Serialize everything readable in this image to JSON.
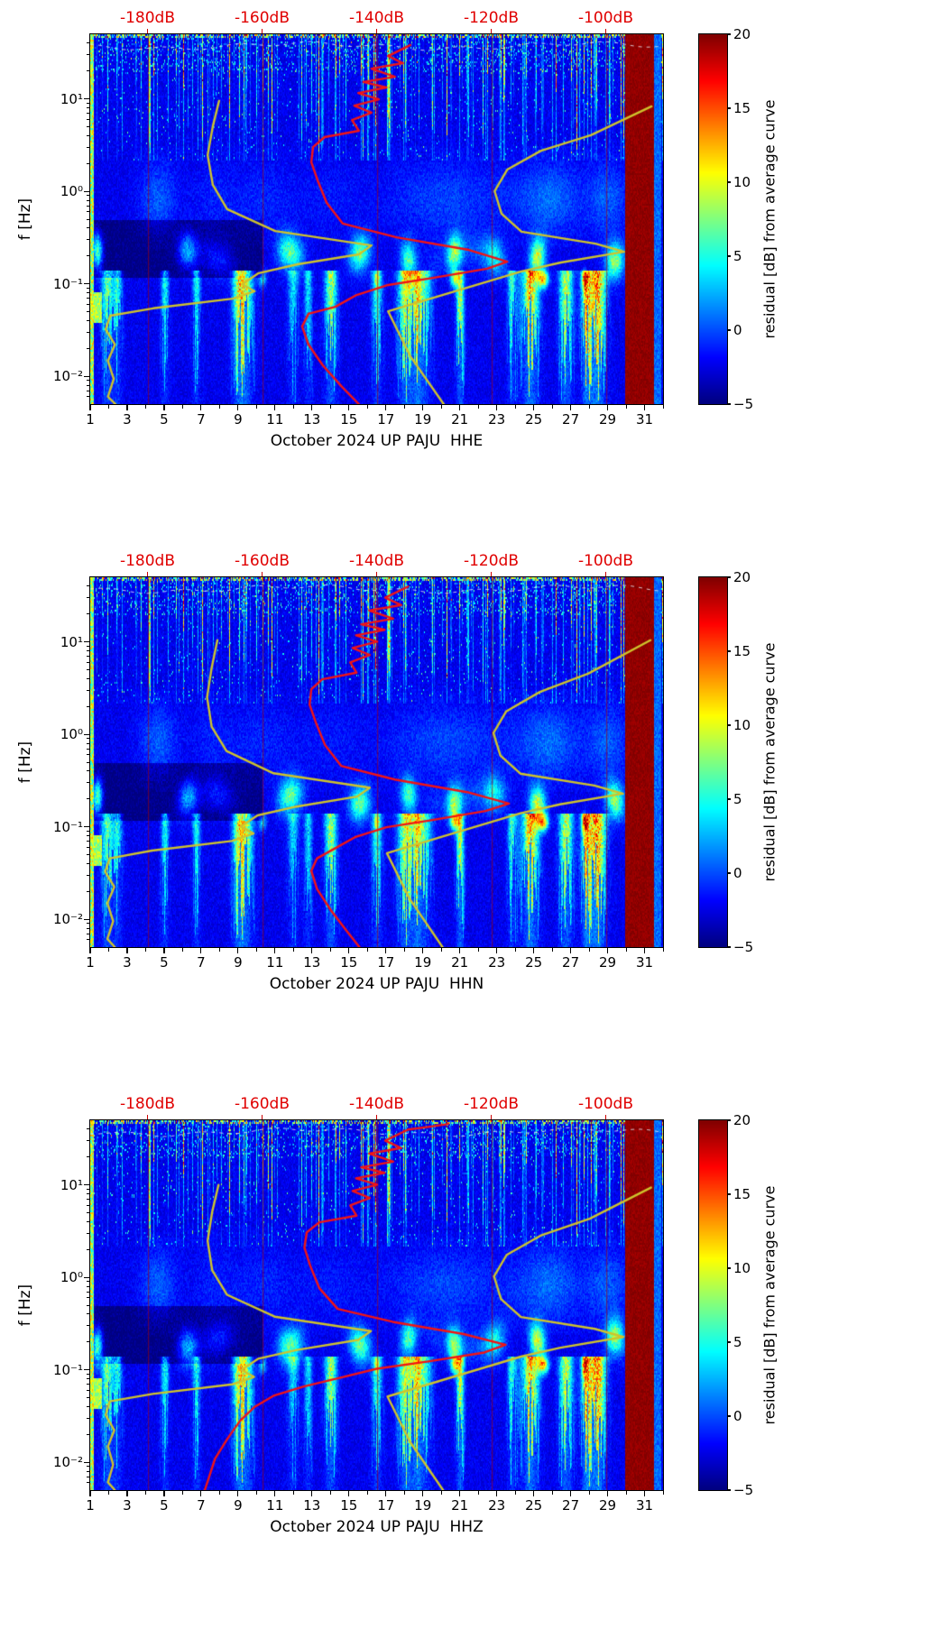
{
  "figure": {
    "background": "#ffffff",
    "accent_red": "#e00000",
    "curve_red": "#f21414",
    "curve_yellow": "#cfc32c",
    "grid_red": "#aa0000",
    "colormap": "jet"
  },
  "chart_data": [
    {
      "type": "heatmap",
      "id": "HHE",
      "seed": 11,
      "xlabel": "October 2024 UP PAJU  HHE",
      "ylabel": "f [Hz]",
      "x_axis": {
        "min": 1,
        "max": 32,
        "major_ticks": [
          1,
          3,
          5,
          7,
          9,
          11,
          13,
          15,
          17,
          19,
          21,
          23,
          25,
          27,
          29,
          31
        ],
        "tick_labels": [
          "1",
          "3",
          "5",
          "7",
          "9",
          "11",
          "13",
          "15",
          "17",
          "19",
          "21",
          "23",
          "25",
          "27",
          "29",
          "31"
        ],
        "minor_ticks": [
          2,
          4,
          6,
          8,
          10,
          12,
          14,
          16,
          18,
          20,
          22,
          24,
          26,
          28,
          30,
          32
        ]
      },
      "y_axis": {
        "scale": "log",
        "min": 0.005,
        "max": 50,
        "major_ticks": [
          10,
          1,
          0.1,
          0.01
        ],
        "tick_labels": [
          "10¹",
          "10⁰",
          "10⁻¹",
          "10⁻²"
        ]
      },
      "top_axis": {
        "labels": [
          "-180dB",
          "-160dB",
          "-140dB",
          "-120dB",
          "-100dB"
        ],
        "positions": [
          0.1,
          0.3,
          0.5,
          0.7,
          0.9
        ]
      },
      "colorbar": {
        "label": "residual [dB] from average curve",
        "min": -5,
        "max": 20,
        "ticks": [
          20,
          15,
          10,
          5,
          0,
          -5
        ],
        "tick_labels": [
          "20",
          "15",
          "10",
          "5",
          "0",
          "−5"
        ]
      },
      "saturated_band": [
        0.935,
        0.985
      ],
      "curves": {
        "red": [
          [
            0.559,
            0.029
          ],
          [
            0.52,
            0.059
          ],
          [
            0.546,
            0.078
          ],
          [
            0.491,
            0.093
          ],
          [
            0.532,
            0.115
          ],
          [
            0.477,
            0.129
          ],
          [
            0.517,
            0.144
          ],
          [
            0.468,
            0.159
          ],
          [
            0.504,
            0.176
          ],
          [
            0.461,
            0.193
          ],
          [
            0.491,
            0.212
          ],
          [
            0.457,
            0.232
          ],
          [
            0.469,
            0.261
          ],
          [
            0.409,
            0.278
          ],
          [
            0.389,
            0.305
          ],
          [
            0.386,
            0.346
          ],
          [
            0.397,
            0.395
          ],
          [
            0.413,
            0.456
          ],
          [
            0.441,
            0.512
          ],
          [
            0.535,
            0.549
          ],
          [
            0.661,
            0.583
          ],
          [
            0.728,
            0.615
          ],
          [
            0.693,
            0.634
          ],
          [
            0.598,
            0.659
          ],
          [
            0.52,
            0.678
          ],
          [
            0.465,
            0.705
          ],
          [
            0.428,
            0.737
          ],
          [
            0.381,
            0.756
          ],
          [
            0.37,
            0.79
          ],
          [
            0.381,
            0.839
          ],
          [
            0.406,
            0.895
          ],
          [
            0.438,
            0.951
          ],
          [
            0.469,
            1.0
          ]
        ],
        "yellow_a": [
          [
            0.225,
            0.18
          ],
          [
            0.214,
            0.249
          ],
          [
            0.205,
            0.327
          ],
          [
            0.214,
            0.407
          ],
          [
            0.239,
            0.473
          ],
          [
            0.323,
            0.532
          ],
          [
            0.491,
            0.571
          ],
          [
            0.469,
            0.595
          ],
          [
            0.362,
            0.622
          ],
          [
            0.294,
            0.646
          ],
          [
            0.265,
            0.676
          ],
          [
            0.287,
            0.695
          ],
          [
            0.249,
            0.715
          ],
          [
            0.11,
            0.741
          ],
          [
            0.035,
            0.761
          ],
          [
            0.027,
            0.798
          ],
          [
            0.043,
            0.839
          ],
          [
            0.031,
            0.883
          ],
          [
            0.041,
            0.932
          ],
          [
            0.031,
            0.98
          ],
          [
            0.044,
            1.0
          ]
        ],
        "yellow_b": [
          [
            0.98,
            0.195
          ],
          [
            0.874,
            0.273
          ],
          [
            0.787,
            0.315
          ],
          [
            0.728,
            0.366
          ],
          [
            0.706,
            0.424
          ],
          [
            0.718,
            0.485
          ],
          [
            0.753,
            0.534
          ],
          [
            0.882,
            0.566
          ],
          [
            0.932,
            0.588
          ],
          [
            0.822,
            0.617
          ],
          [
            0.753,
            0.641
          ],
          [
            0.52,
            0.749
          ],
          [
            0.559,
            0.871
          ],
          [
            0.617,
            1.0
          ]
        ]
      }
    },
    {
      "type": "heatmap",
      "id": "HHN",
      "seed": 22,
      "xlabel": "October 2024 UP PAJU  HHN",
      "ylabel": "f [Hz]",
      "x_axis": {
        "min": 1,
        "max": 32,
        "major_ticks": [
          1,
          3,
          5,
          7,
          9,
          11,
          13,
          15,
          17,
          19,
          21,
          23,
          25,
          27,
          29,
          31
        ],
        "tick_labels": [
          "1",
          "3",
          "5",
          "7",
          "9",
          "11",
          "13",
          "15",
          "17",
          "19",
          "21",
          "23",
          "25",
          "27",
          "29",
          "31"
        ],
        "minor_ticks": [
          2,
          4,
          6,
          8,
          10,
          12,
          14,
          16,
          18,
          20,
          22,
          24,
          26,
          28,
          30,
          32
        ]
      },
      "y_axis": {
        "scale": "log",
        "min": 0.005,
        "max": 50,
        "major_ticks": [
          10,
          1,
          0.1,
          0.01
        ],
        "tick_labels": [
          "10¹",
          "10⁰",
          "10⁻¹",
          "10⁻²"
        ]
      },
      "top_axis": {
        "labels": [
          "-180dB",
          "-160dB",
          "-140dB",
          "-120dB",
          "-100dB"
        ],
        "positions": [
          0.1,
          0.3,
          0.5,
          0.7,
          0.9
        ]
      },
      "colorbar": {
        "label": "residual [dB] from average curve",
        "min": -5,
        "max": 20,
        "ticks": [
          20,
          15,
          10,
          5,
          0,
          -5
        ],
        "tick_labels": [
          "20",
          "15",
          "10",
          "5",
          "0",
          "−5"
        ]
      },
      "saturated_band": [
        0.935,
        0.985
      ],
      "curves": {
        "red": [
          [
            0.555,
            0.025
          ],
          [
            0.515,
            0.055
          ],
          [
            0.543,
            0.075
          ],
          [
            0.487,
            0.09
          ],
          [
            0.529,
            0.112
          ],
          [
            0.473,
            0.127
          ],
          [
            0.514,
            0.142
          ],
          [
            0.464,
            0.157
          ],
          [
            0.501,
            0.174
          ],
          [
            0.458,
            0.191
          ],
          [
            0.488,
            0.21
          ],
          [
            0.454,
            0.23
          ],
          [
            0.465,
            0.258
          ],
          [
            0.405,
            0.276
          ],
          [
            0.386,
            0.303
          ],
          [
            0.383,
            0.344
          ],
          [
            0.394,
            0.393
          ],
          [
            0.41,
            0.454
          ],
          [
            0.438,
            0.51
          ],
          [
            0.532,
            0.547
          ],
          [
            0.658,
            0.581
          ],
          [
            0.731,
            0.612
          ],
          [
            0.69,
            0.632
          ],
          [
            0.595,
            0.657
          ],
          [
            0.517,
            0.676
          ],
          [
            0.462,
            0.703
          ],
          [
            0.425,
            0.735
          ],
          [
            0.396,
            0.76
          ],
          [
            0.386,
            0.794
          ],
          [
            0.396,
            0.843
          ],
          [
            0.42,
            0.9
          ],
          [
            0.447,
            0.955
          ],
          [
            0.47,
            1.0
          ]
        ],
        "yellow_a": [
          [
            0.222,
            0.17
          ],
          [
            0.212,
            0.245
          ],
          [
            0.204,
            0.324
          ],
          [
            0.212,
            0.404
          ],
          [
            0.238,
            0.47
          ],
          [
            0.32,
            0.53
          ],
          [
            0.488,
            0.569
          ],
          [
            0.466,
            0.593
          ],
          [
            0.36,
            0.62
          ],
          [
            0.292,
            0.644
          ],
          [
            0.263,
            0.674
          ],
          [
            0.285,
            0.693
          ],
          [
            0.247,
            0.713
          ],
          [
            0.108,
            0.739
          ],
          [
            0.034,
            0.76
          ],
          [
            0.026,
            0.796
          ],
          [
            0.042,
            0.837
          ],
          [
            0.03,
            0.881
          ],
          [
            0.04,
            0.93
          ],
          [
            0.03,
            0.978
          ],
          [
            0.043,
            1.0
          ]
        ],
        "yellow_b": [
          [
            0.978,
            0.17
          ],
          [
            0.87,
            0.26
          ],
          [
            0.785,
            0.31
          ],
          [
            0.726,
            0.363
          ],
          [
            0.704,
            0.421
          ],
          [
            0.716,
            0.482
          ],
          [
            0.751,
            0.531
          ],
          [
            0.88,
            0.563
          ],
          [
            0.93,
            0.585
          ],
          [
            0.82,
            0.614
          ],
          [
            0.751,
            0.638
          ],
          [
            0.518,
            0.746
          ],
          [
            0.557,
            0.868
          ],
          [
            0.615,
            1.0
          ]
        ]
      }
    },
    {
      "type": "heatmap",
      "id": "HHZ",
      "seed": 33,
      "xlabel": "October 2024 UP PAJU  HHZ",
      "ylabel": "f [Hz]",
      "x_axis": {
        "min": 1,
        "max": 32,
        "major_ticks": [
          1,
          3,
          5,
          7,
          9,
          11,
          13,
          15,
          17,
          19,
          21,
          23,
          25,
          27,
          29,
          31
        ],
        "tick_labels": [
          "1",
          "3",
          "5",
          "7",
          "9",
          "11",
          "13",
          "15",
          "17",
          "19",
          "21",
          "23",
          "25",
          "27",
          "29",
          "31"
        ],
        "minor_ticks": [
          2,
          4,
          6,
          8,
          10,
          12,
          14,
          16,
          18,
          20,
          22,
          24,
          26,
          28,
          30,
          32
        ]
      },
      "y_axis": {
        "scale": "log",
        "min": 0.005,
        "max": 50,
        "major_ticks": [
          10,
          1,
          0.1,
          0.01
        ],
        "tick_labels": [
          "10¹",
          "10⁰",
          "10⁻¹",
          "10⁻²"
        ]
      },
      "top_axis": {
        "labels": [
          "-180dB",
          "-160dB",
          "-140dB",
          "-120dB",
          "-100dB"
        ],
        "positions": [
          0.1,
          0.3,
          0.5,
          0.7,
          0.9
        ]
      },
      "colorbar": {
        "label": "residual [dB] from average curve",
        "min": -5,
        "max": 20,
        "ticks": [
          20,
          15,
          10,
          5,
          0,
          -5
        ],
        "tick_labels": [
          "20",
          "15",
          "10",
          "5",
          "0",
          "−5"
        ]
      },
      "saturated_band": [
        0.935,
        0.985
      ],
      "curves": {
        "red": [
          [
            0.625,
            0.01
          ],
          [
            0.59,
            0.018
          ],
          [
            0.555,
            0.025
          ],
          [
            0.515,
            0.055
          ],
          [
            0.543,
            0.075
          ],
          [
            0.487,
            0.09
          ],
          [
            0.529,
            0.112
          ],
          [
            0.473,
            0.127
          ],
          [
            0.514,
            0.142
          ],
          [
            0.464,
            0.157
          ],
          [
            0.501,
            0.174
          ],
          [
            0.458,
            0.191
          ],
          [
            0.488,
            0.21
          ],
          [
            0.454,
            0.23
          ],
          [
            0.465,
            0.258
          ],
          [
            0.4,
            0.276
          ],
          [
            0.378,
            0.303
          ],
          [
            0.374,
            0.344
          ],
          [
            0.384,
            0.393
          ],
          [
            0.4,
            0.454
          ],
          [
            0.432,
            0.51
          ],
          [
            0.528,
            0.545
          ],
          [
            0.652,
            0.578
          ],
          [
            0.725,
            0.607
          ],
          [
            0.688,
            0.628
          ],
          [
            0.59,
            0.652
          ],
          [
            0.5,
            0.672
          ],
          [
            0.44,
            0.695
          ],
          [
            0.373,
            0.72
          ],
          [
            0.32,
            0.745
          ],
          [
            0.287,
            0.775
          ],
          [
            0.262,
            0.812
          ],
          [
            0.24,
            0.86
          ],
          [
            0.218,
            0.915
          ],
          [
            0.2,
            1.0
          ]
        ],
        "yellow_a": [
          [
            0.224,
            0.175
          ],
          [
            0.213,
            0.247
          ],
          [
            0.205,
            0.326
          ],
          [
            0.213,
            0.406
          ],
          [
            0.239,
            0.472
          ],
          [
            0.322,
            0.531
          ],
          [
            0.49,
            0.57
          ],
          [
            0.468,
            0.594
          ],
          [
            0.361,
            0.621
          ],
          [
            0.293,
            0.645
          ],
          [
            0.264,
            0.675
          ],
          [
            0.286,
            0.694
          ],
          [
            0.248,
            0.714
          ],
          [
            0.109,
            0.74
          ],
          [
            0.034,
            0.76
          ],
          [
            0.027,
            0.797
          ],
          [
            0.042,
            0.838
          ],
          [
            0.031,
            0.882
          ],
          [
            0.04,
            0.931
          ],
          [
            0.031,
            0.979
          ],
          [
            0.043,
            1.0
          ]
        ],
        "yellow_b": [
          [
            0.979,
            0.182
          ],
          [
            0.872,
            0.266
          ],
          [
            0.786,
            0.312
          ],
          [
            0.727,
            0.364
          ],
          [
            0.705,
            0.422
          ],
          [
            0.717,
            0.483
          ],
          [
            0.752,
            0.532
          ],
          [
            0.881,
            0.564
          ],
          [
            0.931,
            0.586
          ],
          [
            0.821,
            0.615
          ],
          [
            0.752,
            0.639
          ],
          [
            0.519,
            0.747
          ],
          [
            0.558,
            0.869
          ],
          [
            0.616,
            1.0
          ]
        ]
      }
    }
  ]
}
